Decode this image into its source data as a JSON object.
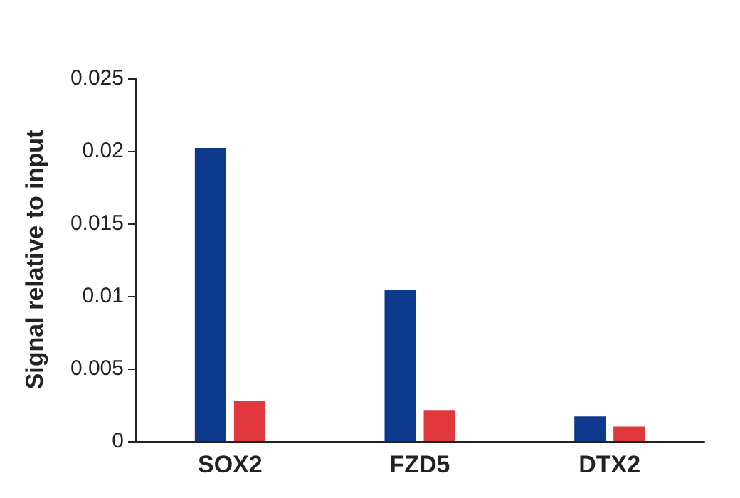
{
  "chart_data": {
    "type": "bar",
    "ylabel": "Signal relative to input",
    "categories": [
      "SOX2",
      "FZD5",
      "DTX2"
    ],
    "series": [
      {
        "color": "#0d3a8c",
        "values": [
          0.0202,
          0.0104,
          0.0017
        ]
      },
      {
        "color": "#e0383c",
        "values": [
          0.0028,
          0.0021,
          0.001
        ]
      }
    ],
    "ylim": [
      0,
      0.025
    ],
    "yticks": [
      0,
      0.005,
      0.01,
      0.015,
      0.02,
      0.025
    ],
    "grid": false
  }
}
